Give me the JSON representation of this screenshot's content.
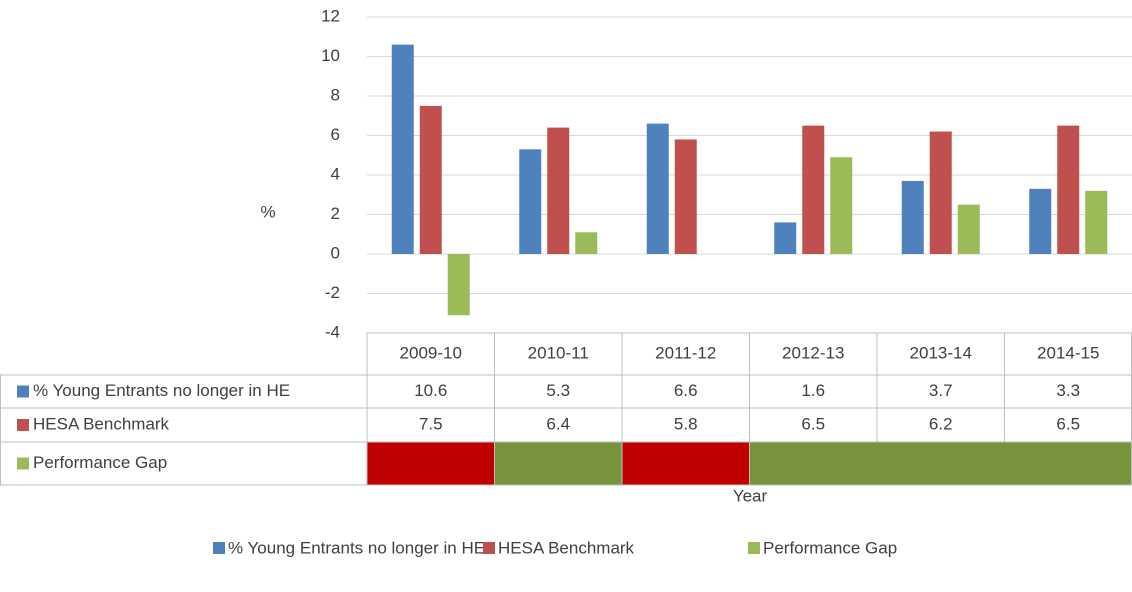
{
  "chart_data": {
    "type": "bar",
    "y_label": "%",
    "x_label": "Year",
    "categories": [
      "2009-10",
      "2010-11",
      "2011-12",
      "2012-13",
      "2013-14",
      "2014-15"
    ],
    "series": [
      {
        "name": "% Young Entrants no longer in HE",
        "color": "#4f81bd",
        "values": [
          10.6,
          5.3,
          6.6,
          1.6,
          3.7,
          3.3
        ]
      },
      {
        "name": "HESA Benchmark",
        "color": "#c0504d",
        "values": [
          7.5,
          6.4,
          5.8,
          6.5,
          6.2,
          6.5
        ]
      },
      {
        "name": "Performance Gap",
        "color": "#9bbb59",
        "values": [
          -3.1,
          1.1,
          null,
          4.9,
          2.5,
          3.2
        ]
      }
    ],
    "gap_cell_colors": [
      "#c00000",
      "#77933c",
      "#c00000",
      "#77933c",
      "#77933c",
      "#77933c"
    ],
    "ylim": [
      -4,
      12
    ],
    "yticks": [
      -4,
      -2,
      0,
      2,
      4,
      6,
      8,
      10,
      12
    ],
    "grid": true,
    "data_table": true,
    "legend": "bottom"
  }
}
